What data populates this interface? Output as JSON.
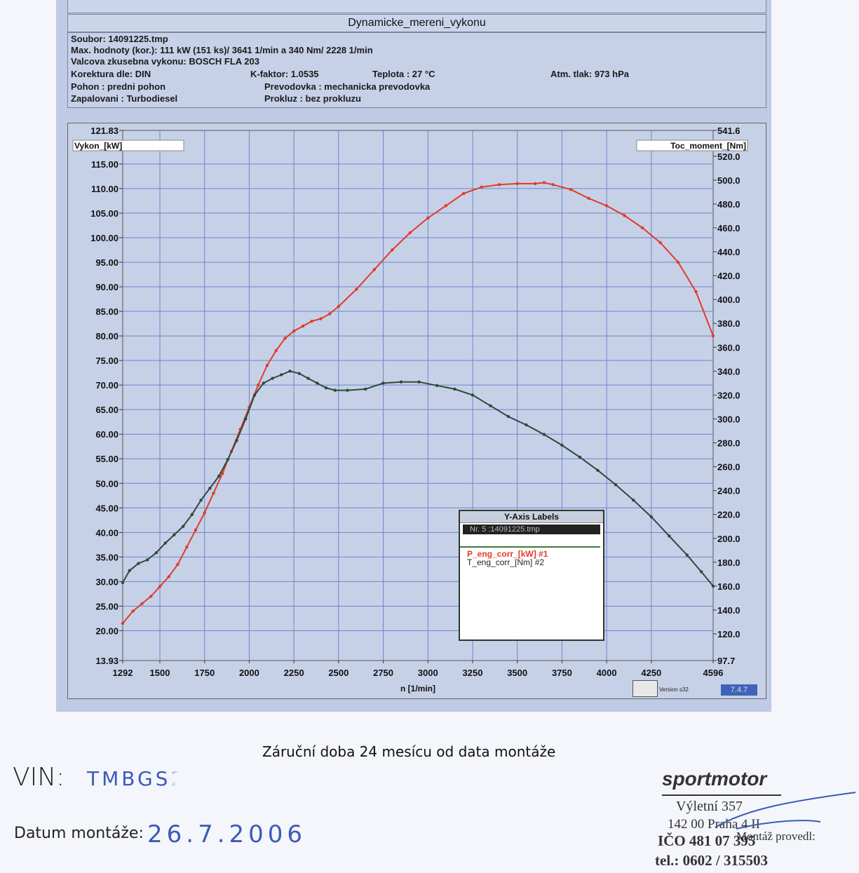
{
  "header": {
    "title": "Dynamicke_mereni_vykonu",
    "file": "Soubor: 14091225.tmp",
    "max_values": "Max. hodnoty (kor.):  111 kW (151 ks)/ 3641 1/min  a   340 Nm/ 2228 1/min",
    "dyno": "Valcova zkusebna vykonu: BOSCH FLA 203",
    "correction": "Korektura dle: DIN",
    "k_factor": "K-faktor: 1.0535",
    "temperature": "Teplota      :  27 °C",
    "pressure": "Atm. tlak:  973 hPa",
    "drive": "Pohon       :  predni pohon",
    "gearbox": "Prevodovka :   mechanicka prevodovka",
    "ignition": "Zapalovani  :  Turbodiesel",
    "slip": "Prokluz  :   bez prokluzu"
  },
  "chart_data": {
    "type": "line",
    "xlabel": "n  [1/min]",
    "ylabel_left": "Vykon_[kW]",
    "ylabel_right": "Toc_moment_[Nm]",
    "xlim": [
      1292,
      4596
    ],
    "ylim_left": [
      13.93,
      121.83
    ],
    "ylim_right": [
      97.7,
      541.6
    ],
    "x_ticks": [
      "1292",
      "1500",
      "1750",
      "2000",
      "2250",
      "2500",
      "2750",
      "3000",
      "3250",
      "3500",
      "3750",
      "4000",
      "4250",
      "4596"
    ],
    "left_ticks": [
      "121.83",
      "115.00",
      "110.00",
      "105.00",
      "100.00",
      "95.00",
      "90.00",
      "85.00",
      "80.00",
      "75.00",
      "70.00",
      "65.00",
      "60.00",
      "55.00",
      "50.00",
      "45.00",
      "40.00",
      "35.00",
      "30.00",
      "25.00",
      "20.00",
      "13.93"
    ],
    "right_ticks": [
      "541.6",
      "520.0",
      "500.0",
      "480.0",
      "460.0",
      "440.0",
      "420.0",
      "400.0",
      "380.0",
      "360.0",
      "340.0",
      "320.0",
      "300.0",
      "280.0",
      "260.0",
      "240.0",
      "220.0",
      "200.0",
      "180.0",
      "160.0",
      "140.0",
      "120.0",
      "97.7"
    ],
    "grid": true,
    "legend_title": "Y-Axis Labels",
    "legend_file": "Nr. 5 :14091225.tmp",
    "series": [
      {
        "name": "P_eng_corr_[kW] #1",
        "axis": "left",
        "color": "#e23a2a",
        "x": [
          1292,
          1350,
          1400,
          1450,
          1500,
          1550,
          1600,
          1650,
          1700,
          1750,
          1800,
          1850,
          1900,
          1950,
          2000,
          2050,
          2100,
          2150,
          2200,
          2250,
          2300,
          2350,
          2400,
          2450,
          2500,
          2600,
          2700,
          2800,
          2900,
          3000,
          3100,
          3200,
          3300,
          3400,
          3500,
          3600,
          3650,
          3700,
          3800,
          3900,
          4000,
          4100,
          4200,
          4300,
          4400,
          4500,
          4596
        ],
        "values": [
          21.5,
          24,
          25.5,
          27,
          29,
          31,
          33.5,
          37,
          40.5,
          44,
          48,
          52,
          56.5,
          61,
          65.5,
          70,
          74,
          77,
          79.5,
          81,
          82,
          83,
          83.5,
          84.5,
          86,
          89.5,
          93.5,
          97.5,
          101,
          104,
          106.5,
          109,
          110.3,
          110.8,
          111,
          111,
          111.2,
          110.8,
          109.8,
          108,
          106.5,
          104.5,
          102,
          99,
          95,
          89,
          80
        ]
      },
      {
        "name": "T_eng_corr_[Nm] #2",
        "axis": "right",
        "color": "#2e4a3a",
        "x": [
          1292,
          1330,
          1380,
          1430,
          1480,
          1530,
          1580,
          1630,
          1680,
          1730,
          1780,
          1830,
          1880,
          1930,
          1980,
          2030,
          2080,
          2130,
          2180,
          2228,
          2280,
          2330,
          2380,
          2430,
          2480,
          2550,
          2650,
          2750,
          2850,
          2950,
          3050,
          3150,
          3250,
          3350,
          3450,
          3550,
          3650,
          3750,
          3850,
          3950,
          4050,
          4150,
          4250,
          4350,
          4450,
          4530,
          4596
        ],
        "values": [
          163,
          173,
          179,
          182,
          188,
          196,
          203,
          210,
          220,
          232,
          242,
          252,
          266,
          282,
          300,
          320,
          330,
          334,
          337,
          340,
          338,
          334,
          330,
          326,
          324,
          324,
          325,
          330,
          331,
          331,
          328,
          325,
          320,
          311,
          302,
          295,
          287,
          278,
          268,
          257,
          245,
          232,
          218,
          202,
          186,
          172,
          160
        ]
      }
    ]
  },
  "footer": {
    "version": "Version s32",
    "version_badge": "7.4.7",
    "warranty": "Záruční doba 24 mesícu od data montáže",
    "vin_label": "VIN:",
    "vin_value": "TMBGS21Z",
    "date_label": "Datum montáže:",
    "date_value": "26.7.2006",
    "company": "sportmotor",
    "address1": "Výletní 357",
    "address2": "142 00 Praha 4 II",
    "ico": "IČO 481 07 395",
    "tel": "tel.: 0602 / 315503",
    "installed_by": "Montáž provedl:"
  }
}
